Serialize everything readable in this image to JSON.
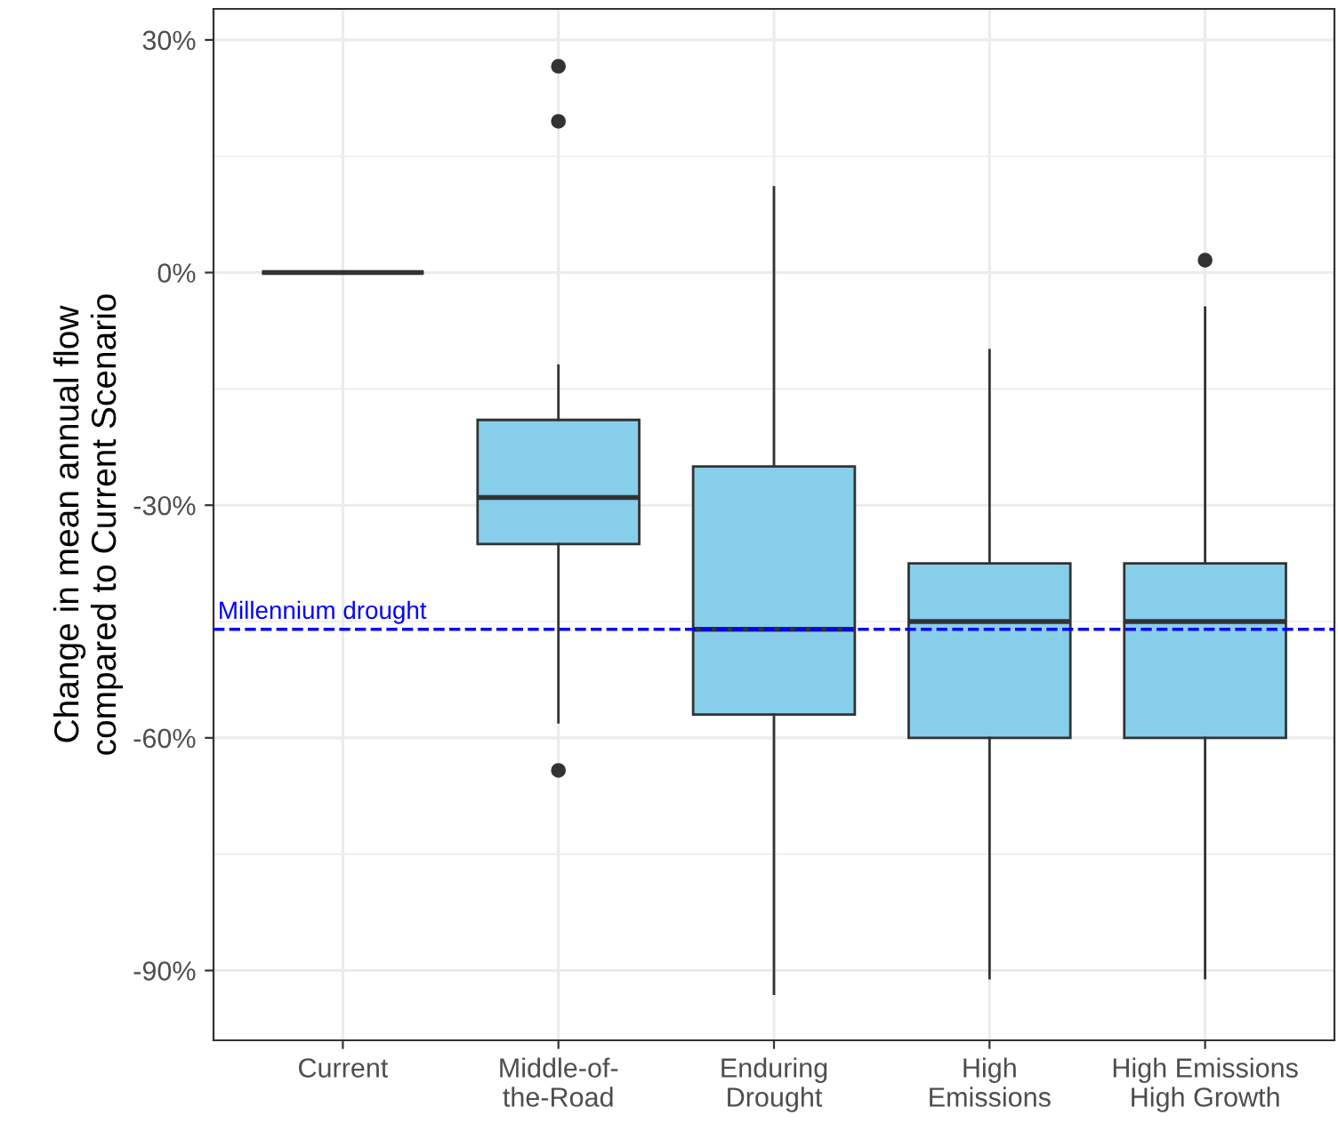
{
  "chart_data": {
    "type": "box",
    "ylabel": "Change in mean annual flow\ncompared to Current Scenario",
    "categories": [
      "Current",
      "Middle-of-\nthe-Road",
      "Enduring\nDrought",
      "High\nEmissions",
      "High Emissions\nHigh Growth"
    ],
    "boxes": [
      {
        "low": 0,
        "q1": 0,
        "median": 0,
        "q3": 0,
        "high": 0
      },
      {
        "low": -58,
        "q1": -35,
        "median": -29,
        "q3": -19,
        "high": -12,
        "outliers": [
          26.6,
          19.5,
          -64.2
        ]
      },
      {
        "low": -93,
        "q1": -57,
        "median": -46,
        "q3": -25,
        "high": 11
      },
      {
        "low": -91,
        "q1": -60,
        "median": -45,
        "q3": -37.5,
        "high": -10
      },
      {
        "low": -91,
        "q1": -60,
        "median": -45,
        "q3": -37.5,
        "high": -4.5,
        "outliers": [
          1.6
        ]
      }
    ],
    "colors": [
      "#333333",
      "#87ceeb",
      "#87ceeb",
      "#87ceeb",
      "#87ceeb"
    ],
    "ylim": [
      -99,
      34
    ],
    "yticks": [
      {
        "value": 30,
        "label": "30%"
      },
      {
        "value": 15,
        "label": null
      },
      {
        "value": 0,
        "label": "0%"
      },
      {
        "value": -15,
        "label": null
      },
      {
        "value": -30,
        "label": "-30%"
      },
      {
        "value": -45,
        "label": null
      },
      {
        "value": -60,
        "label": "-60%"
      },
      {
        "value": -75,
        "label": null
      },
      {
        "value": -90,
        "label": "-90%"
      }
    ],
    "grid": true,
    "ref_lines": [
      {
        "axis": "y",
        "value": -46,
        "label": "Millennium drought",
        "color": "#0000ff",
        "line_style": "dashed"
      }
    ]
  }
}
